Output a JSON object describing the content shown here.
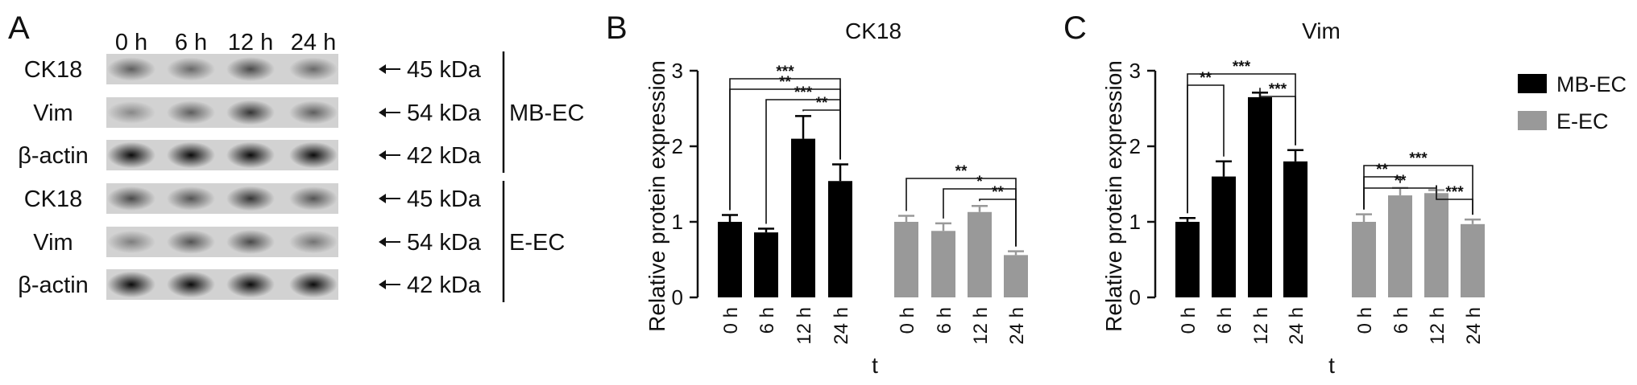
{
  "panels": {
    "a": "A",
    "b": "B",
    "c": "C"
  },
  "blot": {
    "timepoints": [
      "0 h",
      "6 h",
      "12 h",
      "24 h"
    ],
    "groups": [
      {
        "label": "MB-EC",
        "rows": [
          {
            "protein": "CK18",
            "size": "45 kDa",
            "intensity": [
              0.55,
              0.5,
              0.65,
              0.5
            ]
          },
          {
            "protein": "Vim",
            "size": "54 kDa",
            "intensity": [
              0.35,
              0.55,
              0.75,
              0.55
            ]
          },
          {
            "protein": "β-actin",
            "size": "42 kDa",
            "intensity": [
              0.95,
              0.95,
              0.95,
              0.95
            ]
          }
        ]
      },
      {
        "label": "E-EC",
        "rows": [
          {
            "protein": "CK18",
            "size": "45 kDa",
            "intensity": [
              0.65,
              0.6,
              0.75,
              0.6
            ]
          },
          {
            "protein": "Vim",
            "size": "54 kDa",
            "intensity": [
              0.4,
              0.6,
              0.65,
              0.45
            ]
          },
          {
            "protein": "β-actin",
            "size": "42 kDa",
            "intensity": [
              0.95,
              0.95,
              0.95,
              0.95
            ]
          }
        ]
      }
    ]
  },
  "chart_data": [
    {
      "type": "bar",
      "title": "CK18",
      "xlabel": "t",
      "ylabel": "Relative protein expression",
      "ylim": [
        0,
        3
      ],
      "yticks": [
        "0",
        "1",
        "2",
        "3"
      ],
      "categories": [
        "0 h",
        "6 h",
        "12 h",
        "24 h"
      ],
      "series": [
        {
          "name": "MB-EC",
          "color": "#000000",
          "values": [
            1.0,
            0.86,
            2.1,
            1.54
          ],
          "errors": [
            0.09,
            0.05,
            0.3,
            0.22
          ]
        },
        {
          "name": "E-EC",
          "color": "#999999",
          "values": [
            1.0,
            0.88,
            1.13,
            0.56
          ],
          "errors": [
            0.08,
            0.1,
            0.08,
            0.05
          ]
        }
      ],
      "significance": [
        {
          "series": 0,
          "from": 0,
          "to": 3,
          "label": "***"
        },
        {
          "series": 0,
          "from": 0,
          "to": 3,
          "label": "**"
        },
        {
          "series": 0,
          "from": 1,
          "to": 3,
          "label": "***"
        },
        {
          "series": 0,
          "from": 2,
          "to": 3,
          "label": "**"
        },
        {
          "series": 1,
          "from": 0,
          "to": 3,
          "label": "**"
        },
        {
          "series": 1,
          "from": 1,
          "to": 3,
          "label": "*"
        },
        {
          "series": 1,
          "from": 2,
          "to": 3,
          "label": "**"
        }
      ]
    },
    {
      "type": "bar",
      "title": "Vim",
      "xlabel": "t",
      "ylabel": "Relative protein expression",
      "ylim": [
        0,
        3
      ],
      "yticks": [
        "0",
        "1",
        "2",
        "3"
      ],
      "categories": [
        "0 h",
        "6 h",
        "12 h",
        "24 h"
      ],
      "series": [
        {
          "name": "MB-EC",
          "color": "#000000",
          "values": [
            1.0,
            1.6,
            2.65,
            1.8
          ],
          "errors": [
            0.05,
            0.2,
            0.06,
            0.15
          ]
        },
        {
          "name": "E-EC",
          "color": "#999999",
          "values": [
            1.0,
            1.35,
            1.38,
            0.97
          ],
          "errors": [
            0.1,
            0.1,
            0.04,
            0.06
          ]
        }
      ],
      "significance": [
        {
          "series": 0,
          "from": 0,
          "to": 3,
          "label": "***"
        },
        {
          "series": 0,
          "from": 0,
          "to": 1,
          "label": "**"
        },
        {
          "series": 0,
          "from": 2,
          "to": 3,
          "label": "***"
        },
        {
          "series": 1,
          "from": 0,
          "to": 3,
          "label": "***"
        },
        {
          "series": 1,
          "from": 0,
          "to": 1,
          "label": "**"
        },
        {
          "series": 1,
          "from": 0,
          "to": 2,
          "label": "**"
        },
        {
          "series": 1,
          "from": 2,
          "to": 3,
          "label": "***"
        }
      ],
      "legend": {
        "position": "right",
        "entries": [
          {
            "label": "MB-EC",
            "color": "#000000"
          },
          {
            "label": "E-EC",
            "color": "#999999"
          }
        ]
      }
    }
  ]
}
